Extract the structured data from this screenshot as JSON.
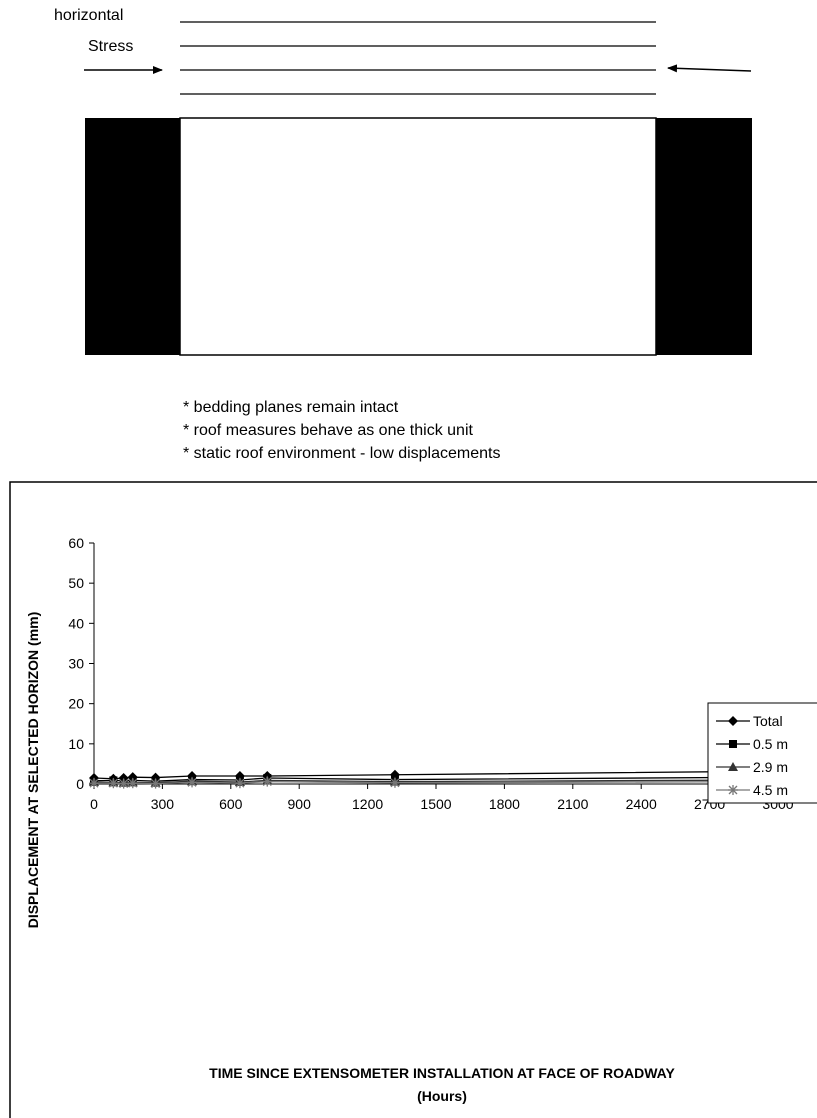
{
  "diagram": {
    "label_line1": "horizontal",
    "label_line2": "Stress",
    "notes": [
      "* bedding planes remain intact",
      "* roof measures behave as one thick unit",
      "* static roof environment - low displacements"
    ]
  },
  "chart_data": {
    "type": "line",
    "xlabel_line1": "TIME SINCE EXTENSOMETER INSTALLATION AT FACE OF ROADWAY",
    "xlabel_line2": "(Hours)",
    "ylabel": "DISPLACEMENT AT SELECTED HORIZON (mm)",
    "xlim": [
      0,
      3000
    ],
    "ylim": [
      0,
      60
    ],
    "x_ticks": [
      0,
      300,
      600,
      900,
      1200,
      1500,
      1800,
      2100,
      2400,
      2700,
      3000
    ],
    "y_ticks": [
      0,
      10,
      20,
      30,
      40,
      50,
      60
    ],
    "grid": false,
    "legend_position": "right",
    "series": [
      {
        "name": "Total",
        "marker": "diamond",
        "color": "#000000",
        "x": [
          0,
          85,
          130,
          170,
          270,
          430,
          640,
          760,
          1320,
          3000
        ],
        "y": [
          1.5,
          1.3,
          1.5,
          1.7,
          1.6,
          2.0,
          2.0,
          2.0,
          2.3,
          3.2
        ]
      },
      {
        "name": "0.5 m",
        "marker": "square",
        "color": "#000000",
        "x": [
          0,
          85,
          130,
          170,
          270,
          430,
          640,
          760,
          1320,
          3000
        ],
        "y": [
          0.8,
          0.9,
          0.8,
          0.9,
          0.7,
          1.1,
          1.0,
          1.5,
          1.1,
          1.7
        ]
      },
      {
        "name": "2.9 m",
        "marker": "triangle",
        "color": "#333333",
        "x": [
          0,
          85,
          130,
          170,
          270,
          430,
          640,
          760,
          1320,
          3000
        ],
        "y": [
          0.5,
          0.4,
          0.3,
          0.4,
          0.3,
          0.7,
          0.5,
          0.9,
          0.6,
          1.0
        ]
      },
      {
        "name": "4.5 m",
        "marker": "asterisk",
        "color": "#777777",
        "x": [
          0,
          85,
          130,
          170,
          270,
          430,
          640,
          760,
          1320,
          3000
        ],
        "y": [
          0.2,
          0.2,
          0.1,
          0.2,
          0.1,
          0.4,
          0.2,
          0.6,
          0.3,
          0.6
        ]
      }
    ]
  }
}
